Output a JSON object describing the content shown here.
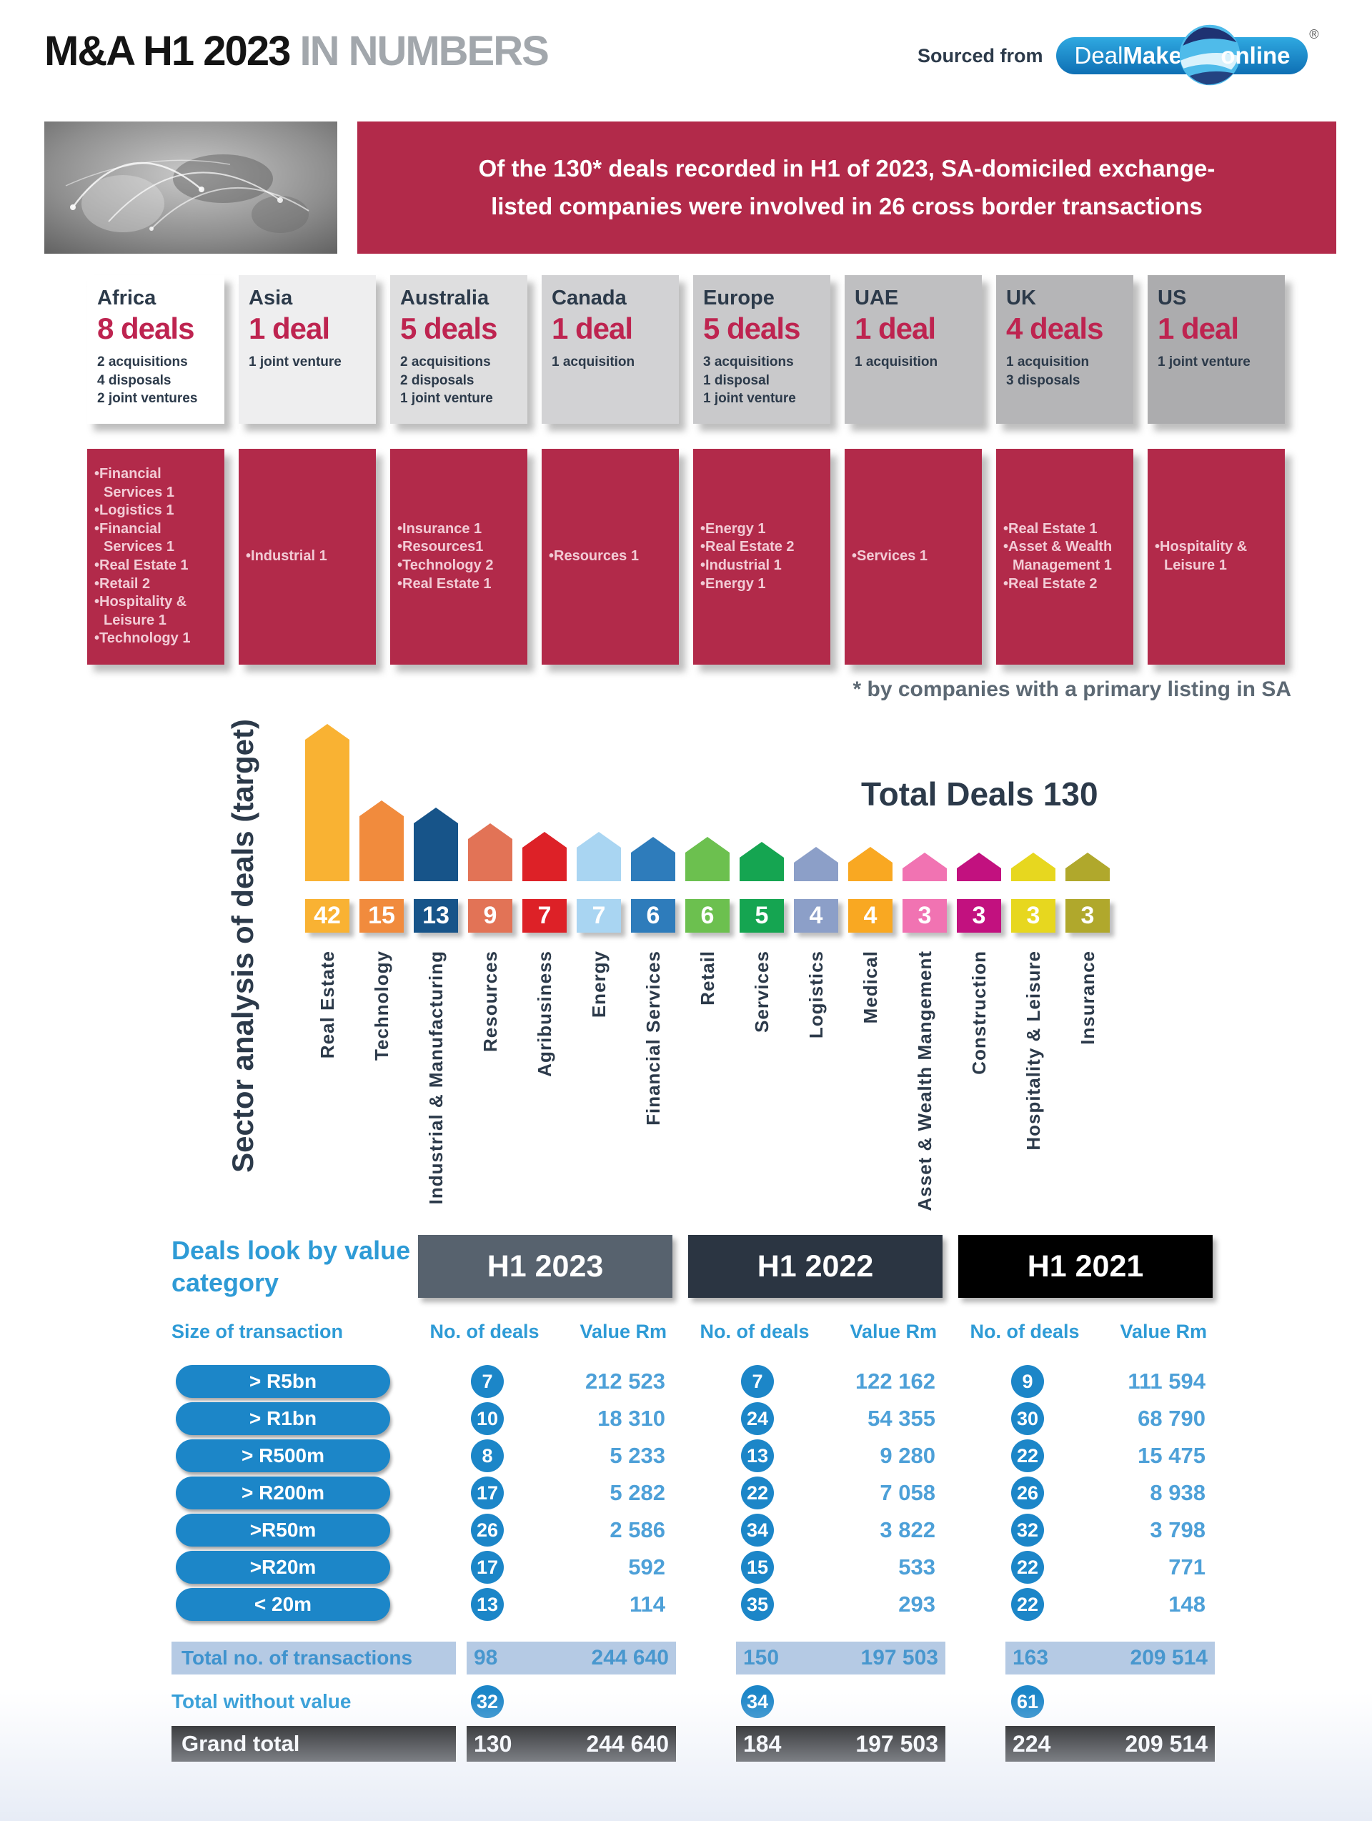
{
  "page": {
    "title_primary": "M&A H1 2023",
    "title_secondary": " IN NUMBERS",
    "sourced_from": "Sourced from",
    "logo": {
      "part1": "Deal",
      "part2": "Makers",
      "part3": "online",
      "registered": "®"
    },
    "banner_line1": "Of the 130* deals recorded in H1 of 2023, SA-domiciled exchange-",
    "banner_line2": "listed companies were involved in 26 cross border transactions",
    "footnote": "*  by companies with a primary listing in SA"
  },
  "colors": {
    "crimson": "#B22A4A",
    "deals_red": "#BE2450",
    "navy": "#2C3A4A",
    "table_blue": "#1C86C8",
    "light_band": "#B5CAE4",
    "year_header_bgs": [
      "#57626E",
      "#2B3542",
      "#000000"
    ]
  },
  "regions": [
    {
      "name": "Africa",
      "deals": "8 deals",
      "details": [
        "2 acquisitions",
        "4 disposals",
        "2 joint ventures"
      ],
      "sectors": [
        "Financial Services 1",
        "Logistics 1",
        "Financial Services 1",
        "Real Estate 1",
        "Retail 2",
        "Hospitality & Leisure 1",
        "Technology 1"
      ],
      "bg": "#ffffff"
    },
    {
      "name": "Asia",
      "deals": "1 deal",
      "details": [
        "1 joint venture"
      ],
      "sectors": [
        "Industrial 1"
      ],
      "bg": "#eeeeef"
    },
    {
      "name": "Australia",
      "deals": "5 deals",
      "details": [
        "2 acquisitions",
        "2 disposals",
        "1 joint venture"
      ],
      "sectors": [
        "Insurance 1",
        "Resources1",
        "Technology 2",
        "Real Estate 1"
      ],
      "bg": "#dededf"
    },
    {
      "name": "Canada",
      "deals": "1 deal",
      "details": [
        "1 acquisition"
      ],
      "sectors": [
        "Resources 1"
      ],
      "bg": "#d2d2d4"
    },
    {
      "name": "Europe",
      "deals": "5 deals",
      "details": [
        "3 acquisitions",
        "1 disposal",
        "1 joint venture"
      ],
      "sectors": [
        "Energy 1",
        "Real Estate 2",
        "Industrial 1",
        "Energy 1"
      ],
      "bg": "#c9c9cb"
    },
    {
      "name": "UAE",
      "deals": "1 deal",
      "details": [
        "1 acquisition"
      ],
      "sectors": [
        "Services 1"
      ],
      "bg": "#bfbfc1"
    },
    {
      "name": "UK",
      "deals": "4 deals",
      "details": [
        "1 acquisition",
        "3 disposals"
      ],
      "sectors": [
        "Real Estate 1",
        "Asset & Wealth Management 1",
        "Real Estate 2"
      ],
      "bg": "#b5b5b7"
    },
    {
      "name": "US",
      "deals": "1 deal",
      "details": [
        "1 joint venture"
      ],
      "sectors": [
        "Hospitality & Leisure 1"
      ],
      "bg": "#acacae"
    }
  ],
  "chart_data": {
    "type": "bar",
    "title": "Total Deals 130",
    "axis_label": "Sector analysis of deals (target)",
    "categories": [
      "Real Estate",
      "Technology",
      "Industrial & Manufacturing",
      "Resources",
      "Agribusiness",
      "Energy",
      "Financial Services",
      "Retail",
      "Services",
      "Logistics",
      "Medical",
      "Asset & Wealth Mangement",
      "Construction",
      "Hospitality & Leisure",
      "Insurance"
    ],
    "values": [
      42,
      15,
      13,
      9,
      7,
      7,
      6,
      6,
      5,
      4,
      4,
      3,
      3,
      3,
      3
    ],
    "bar_colors": [
      "#F9B233",
      "#F18B3D",
      "#175489",
      "#E27356",
      "#DD2127",
      "#A9D5F2",
      "#2E7CBB",
      "#6CC04F",
      "#15A551",
      "#8C9FC8",
      "#F9A822",
      "#F173B2",
      "#C2117F",
      "#E7D71F",
      "#B0A82C"
    ],
    "ylim": [
      0,
      42
    ],
    "grid": false,
    "legend": "none"
  },
  "table": {
    "title": "Deals look by value category",
    "size_header": "Size of transaction",
    "year_headers": [
      "H1 2023",
      "H1 2022",
      "H1 2021"
    ],
    "sub_headers": [
      "No. of deals",
      "Value Rm"
    ],
    "rows": [
      {
        "label": "> R5bn",
        "cells": [
          [
            "7",
            "212 523"
          ],
          [
            "7",
            "122 162"
          ],
          [
            "9",
            "111 594"
          ]
        ]
      },
      {
        "label": "> R1bn",
        "cells": [
          [
            "10",
            "18 310"
          ],
          [
            "24",
            "54 355"
          ],
          [
            "30",
            "68 790"
          ]
        ]
      },
      {
        "label": "> R500m",
        "cells": [
          [
            "8",
            "5 233"
          ],
          [
            "13",
            "9 280"
          ],
          [
            "22",
            "15 475"
          ]
        ]
      },
      {
        "label": "> R200m",
        "cells": [
          [
            "17",
            "5 282"
          ],
          [
            "22",
            "7 058"
          ],
          [
            "26",
            "8 938"
          ]
        ]
      },
      {
        "label": ">R50m",
        "cells": [
          [
            "26",
            "2 586"
          ],
          [
            "34",
            "3 822"
          ],
          [
            "32",
            "3 798"
          ]
        ]
      },
      {
        "label": ">R20m",
        "cells": [
          [
            "17",
            "592"
          ],
          [
            "15",
            "533"
          ],
          [
            "22",
            "771"
          ]
        ]
      },
      {
        "label": "< 20m",
        "cells": [
          [
            "13",
            "114"
          ],
          [
            "35",
            "293"
          ],
          [
            "22",
            "148"
          ]
        ]
      }
    ],
    "total_transactions": {
      "label": "Total no. of transactions",
      "values": [
        [
          "98",
          "244 640"
        ],
        [
          "150",
          "197 503"
        ],
        [
          "163",
          "209 514"
        ]
      ]
    },
    "total_without_value": {
      "label": "Total without value",
      "values": [
        "32",
        "34",
        "61"
      ]
    },
    "grand_total": {
      "label": "Grand total",
      "values": [
        [
          "130",
          "244 640"
        ],
        [
          "184",
          "197 503"
        ],
        [
          "224",
          "209 514"
        ]
      ]
    }
  }
}
